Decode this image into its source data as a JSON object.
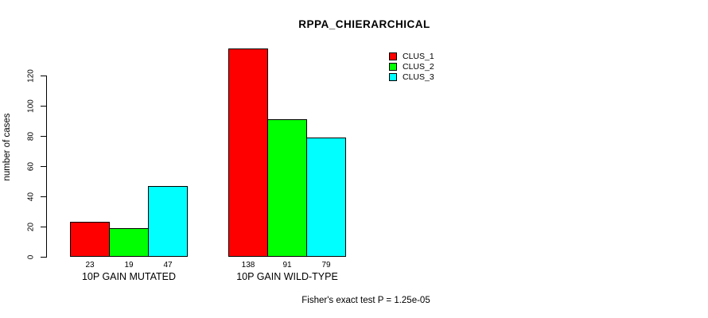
{
  "title": "RPPA_CHIERARCHICAL",
  "footnote": "Fisher's exact test P = 1.25e-05",
  "chart_data": {
    "type": "bar",
    "title": "RPPA_CHIERARCHICAL",
    "xlabel": "",
    "ylabel": "number of cases",
    "categories": [
      "10P GAIN MUTATED",
      "10P GAIN WILD-TYPE"
    ],
    "series": [
      {
        "name": "CLUS_1",
        "color": "#ff0000",
        "values": [
          23,
          138
        ]
      },
      {
        "name": "CLUS_2",
        "color": "#00ff00",
        "values": [
          19,
          91
        ]
      },
      {
        "name": "CLUS_3",
        "color": "#00ffff",
        "values": [
          47,
          79
        ]
      }
    ],
    "bar_value_labels": [
      [
        "23",
        "19",
        "47"
      ],
      [
        "138",
        "91",
        "79"
      ]
    ],
    "yticks": [
      0,
      20,
      40,
      60,
      80,
      100,
      120
    ],
    "ylim": [
      0,
      140
    ],
    "grid": false,
    "legend_position": "top-right",
    "annotation": "Fisher's exact test P = 1.25e-05",
    "bar_border_color": "#000000",
    "background_color": "#ffffff"
  }
}
